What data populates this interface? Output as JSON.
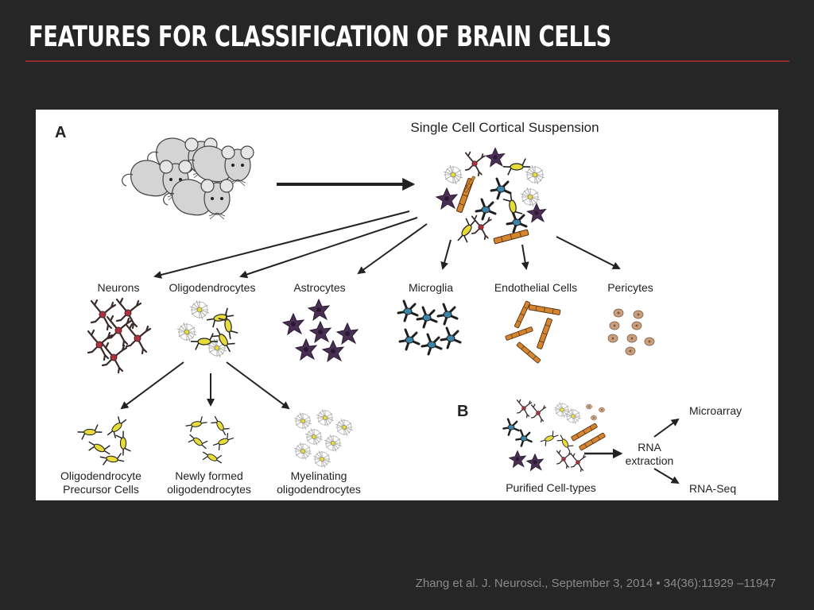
{
  "slide": {
    "title": "FEATURES FOR CLASSIFICATION OF BRAIN CELLS",
    "citation": "Zhang et al. J. Neurosci., September 3, 2014 • 34(36):11929 –11947"
  },
  "figure": {
    "panel_a_label": "A",
    "panel_b_label": "B",
    "suspension_title": "Single Cell Cortical Suspension",
    "cell_types": [
      "Neurons",
      "Oligodendrocytes",
      "Astrocytes",
      "Microglia",
      "Endothelial Cells",
      "Pericytes"
    ],
    "oligo_stages": [
      {
        "line1": "Oligodendrocyte",
        "line2": "Precursor Cells"
      },
      {
        "line1": "Newly formed",
        "line2": "oligodendrocytes"
      },
      {
        "line1": "Myelinating",
        "line2": "oligodendrocytes"
      }
    ],
    "panel_b": {
      "purified_label": "Purified Cell-types",
      "rna_line1": "RNA",
      "rna_line2": "extraction",
      "output_1": "Microarray",
      "output_2": "RNA-Seq"
    }
  },
  "colors": {
    "background": "#262626",
    "accent_rule": "#8e2a2a",
    "neuron": "#3a2a2a",
    "neuron_soma": "#b0303c",
    "oligo_yellow": "#e8dc3a",
    "astro": "#4a2f55",
    "microglia_blue": "#3b86a8",
    "endothelial": "#d6852f",
    "pericyte": "#c9a07e",
    "ink": "#222222"
  }
}
